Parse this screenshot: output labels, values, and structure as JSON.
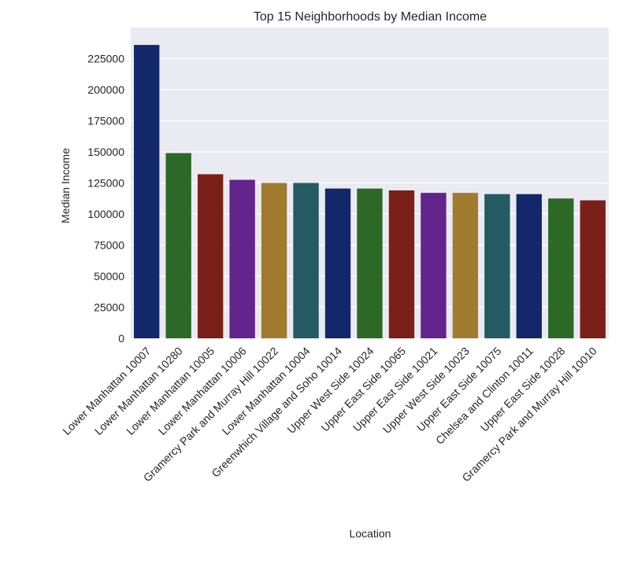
{
  "chart_data": {
    "type": "bar",
    "title": "Top 15 Neighborhoods by Median Income",
    "xlabel": "Location",
    "ylabel": "Median Income",
    "ylim": [
      0,
      250000
    ],
    "yticks": [
      0,
      25000,
      50000,
      75000,
      100000,
      125000,
      150000,
      175000,
      200000,
      225000
    ],
    "ytick_labels": [
      "0",
      "25000",
      "50000",
      "75000",
      "100000",
      "125000",
      "150000",
      "175000",
      "200000",
      "225000"
    ],
    "grid": true,
    "categories": [
      "Lower Manhattan 10007",
      "Lower Manhattan 10280",
      "Lower Manhattan 10005",
      "Lower Manhattan 10006",
      "Gramercy Park and Murray Hill 10022",
      "Lower Manhattan 10004",
      "Greenwhich Village and Soho 10014",
      "Upper West Side 10024",
      "Upper East Side 10065",
      "Upper East Side 10021",
      "Upper West Side 10023",
      "Upper East Side 10075",
      "Chelsea and Clinton 10011",
      "Upper East Side 10028",
      "Gramercy Park and Murray Hill 10010"
    ],
    "values": [
      236000,
      149000,
      132000,
      127500,
      125000,
      125000,
      120500,
      120500,
      119000,
      117000,
      117000,
      116000,
      116000,
      112500,
      111000
    ],
    "colors": [
      "#13286b",
      "#2d6926",
      "#7a2018",
      "#63248c",
      "#a07a2e",
      "#245a62",
      "#13286b",
      "#2d6926",
      "#7a2018",
      "#63248c",
      "#a07a2e",
      "#245a62",
      "#13286b",
      "#2d6926",
      "#7a2018"
    ],
    "background_color": "#eaeaf2",
    "grid_color": "#ffffff"
  }
}
